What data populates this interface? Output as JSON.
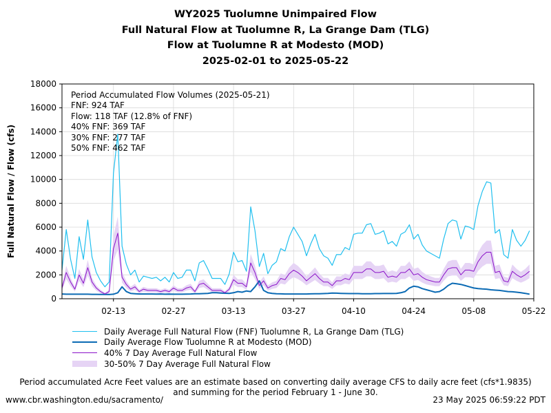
{
  "titles": [
    "WY2025 Tuolumne Unimpaired Flow",
    "Full Natural Flow at Tuolumne R, La Grange Dam (TLG)",
    "Flow at Tuolumne R at Modesto (MOD)",
    "2025-02-01 to 2025-05-22"
  ],
  "annotations": [
    "Period Accumulated Flow Volumes (2025-05-21)",
    "FNF: 924 TAF",
    "Flow: 118 TAF (12.8% of FNF)",
    "40% FNF: 369 TAF",
    "30% FNF: 277 TAF",
    "50% FNF: 462 TAF"
  ],
  "footnote_lines": [
    "Period accumulated Acre Feet values are an estimate based on converting daily average CFS to daily acre feet (cfs*1.9835)",
    "and summing for the period February 1 - June 30."
  ],
  "source": "www.cbr.washington.edu/sacramento/",
  "timestamp": "23 May 2025 06:59:22 PDT",
  "colors": {
    "fnf": "#1fbfef",
    "mod": "#0a6ab4",
    "pct40": "#8a10c8",
    "band": "#e6d4f5"
  },
  "chart_data": {
    "type": "line",
    "title": "WY2025 Tuolumne Unimpaired Flow",
    "ylabel": "Full Natural Flow / Flow (cfs)",
    "xlabel": "",
    "ylim": [
      0,
      18000
    ],
    "yticks": [
      0,
      2000,
      4000,
      6000,
      8000,
      10000,
      12000,
      14000,
      16000,
      18000
    ],
    "xrange": [
      "2025-02-01",
      "2025-05-22"
    ],
    "xticks": [
      "02-13",
      "02-27",
      "03-13",
      "03-27",
      "04-10",
      "04-24",
      "05-08",
      "05-22"
    ],
    "legend_position": "below",
    "grid": true,
    "dates_start": "2025-02-01",
    "series": [
      {
        "name": "Daily Average Full Natural Flow (FNF) Tuolumne R, La Grange Dam (TLG)",
        "color": "#1fbfef",
        "values": [
          2400,
          5800,
          3300,
          1700,
          5200,
          3300,
          6600,
          3500,
          2200,
          1500,
          1000,
          1400,
          10500,
          13800,
          4400,
          2900,
          2000,
          2400,
          1400,
          1900,
          1800,
          1700,
          1800,
          1500,
          1800,
          1400,
          2200,
          1700,
          1800,
          2400,
          2400,
          1500,
          3000,
          3200,
          2500,
          1700,
          1700,
          1700,
          1200,
          2100,
          3900,
          3100,
          3200,
          2300,
          7700,
          5700,
          2700,
          3800,
          2100,
          2800,
          3100,
          4200,
          4000,
          5200,
          6000,
          5400,
          4800,
          3600,
          4600,
          5400,
          4200,
          3600,
          3400,
          2800,
          3700,
          3700,
          4300,
          4100,
          5400,
          5500,
          5500,
          6200,
          6300,
          5400,
          5500,
          5700,
          4600,
          4800,
          4400,
          5400,
          5600,
          6200,
          5000,
          5400,
          4500,
          4000,
          3800,
          3600,
          3400,
          5000,
          6300,
          6600,
          6500,
          5000,
          6100,
          6000,
          5800,
          7800,
          9000,
          9800,
          9700,
          5500,
          5800,
          3700,
          3400,
          5800,
          4900,
          4400,
          4900,
          5700
        ]
      },
      {
        "name": "Daily Average Flow Tuolumne R at Modesto (MOD)",
        "color": "#0a6ab4",
        "values": [
          400,
          380,
          380,
          380,
          380,
          380,
          380,
          370,
          370,
          360,
          360,
          350,
          380,
          500,
          1000,
          600,
          450,
          420,
          400,
          400,
          400,
          400,
          390,
          400,
          380,
          390,
          380,
          380,
          380,
          390,
          400,
          420,
          420,
          430,
          450,
          500,
          500,
          480,
          460,
          450,
          500,
          600,
          550,
          650,
          600,
          1000,
          1500,
          700,
          500,
          450,
          420,
          410,
          400,
          400,
          400,
          400,
          400,
          400,
          410,
          420,
          420,
          430,
          450,
          480,
          470,
          450,
          440,
          430,
          430,
          430,
          420,
          420,
          420,
          430,
          430,
          440,
          440,
          440,
          450,
          500,
          600,
          900,
          1050,
          1000,
          850,
          750,
          650,
          550,
          600,
          800,
          1100,
          1300,
          1250,
          1200,
          1100,
          1000,
          900,
          850,
          820,
          800,
          750,
          720,
          700,
          650,
          600,
          580,
          550,
          500,
          450,
          380
        ]
      },
      {
        "name": "40% 7 Day Average Full Natural Flow",
        "color": "#8a10c8",
        "values": [
          900,
          2200,
          1400,
          800,
          2000,
          1300,
          2600,
          1400,
          900,
          600,
          400,
          600,
          4200,
          5500,
          1800,
          1200,
          800,
          1000,
          600,
          800,
          700,
          700,
          700,
          600,
          700,
          600,
          900,
          700,
          700,
          900,
          1000,
          600,
          1200,
          1300,
          1000,
          700,
          700,
          700,
          500,
          800,
          1600,
          1300,
          1300,
          1000,
          3000,
          2200,
          1100,
          1500,
          900,
          1100,
          1200,
          1700,
          1600,
          2100,
          2400,
          2200,
          1900,
          1500,
          1800,
          2100,
          1700,
          1400,
          1400,
          1100,
          1500,
          1500,
          1700,
          1600,
          2200,
          2200,
          2200,
          2500,
          2500,
          2200,
          2200,
          2300,
          1800,
          1900,
          1800,
          2200,
          2200,
          2500,
          2000,
          2100,
          1800,
          1600,
          1500,
          1400,
          1400,
          2000,
          2500,
          2600,
          2600,
          2000,
          2400,
          2400,
          2300,
          3100,
          3600,
          3900,
          3900,
          2200,
          2300,
          1500,
          1400,
          2300,
          2000,
          1800,
          2000,
          2300
        ]
      },
      {
        "name": "30-50% 7 Day Average Full Natural Flow",
        "type": "band",
        "color": "#e6d4f5",
        "lower_factor_of_40pct": 0.75,
        "upper_factor_of_40pct": 1.25
      }
    ]
  }
}
